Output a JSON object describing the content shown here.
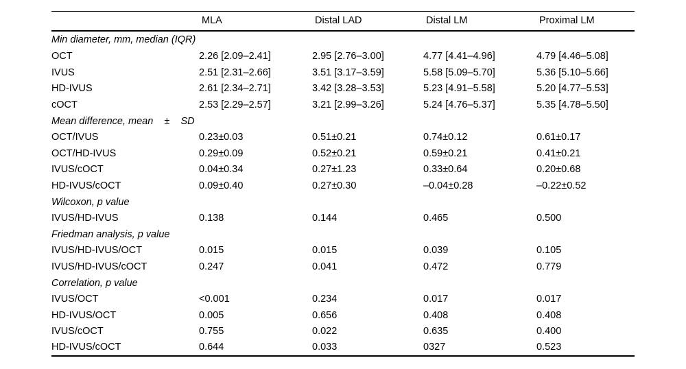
{
  "table": {
    "columns": [
      "",
      "MLA",
      "Distal LAD",
      "Distal LM",
      "Proximal LM"
    ],
    "sections": [
      {
        "header": "Min diameter, mm, median (IQR)",
        "rows": [
          {
            "label": "OCT",
            "values": [
              "2.26 [2.09–2.41]",
              "2.95 [2.76–3.00]",
              "4.77 [4.41–4.96]",
              "4.79 [4.46–5.08]"
            ]
          },
          {
            "label": "IVUS",
            "values": [
              "2.51 [2.31–2.66]",
              "3.51 [3.17–3.59]",
              "5.58 [5.09–5.70]",
              "5.36 [5.10–5.66]"
            ]
          },
          {
            "label": "HD-IVUS",
            "values": [
              "2.61 [2.34–2.71]",
              "3.42 [3.28–3.53]",
              "5.23 [4.91–5.58]",
              "5.20 [4.77–5.53]"
            ]
          },
          {
            "label": "cOCT",
            "values": [
              "2.53 [2.29–2.57]",
              "3.21 [2.99–3.26]",
              "5.24 [4.76–5.37]",
              "5.35 [4.78–5.50]"
            ]
          }
        ]
      },
      {
        "header": "Mean difference, mean    ±    SD",
        "rows": [
          {
            "label": "OCT/IVUS",
            "values": [
              "0.23±0.03",
              "0.51±0.21",
              "0.74±0.12",
              "0.61±0.17"
            ]
          },
          {
            "label": "OCT/HD-IVUS",
            "values": [
              "0.29±0.09",
              "0.52±0.21",
              "0.59±0.21",
              "0.41±0.21"
            ]
          },
          {
            "label": "IVUS/cOCT",
            "values": [
              "0.04±0.34",
              "0.27±1.23",
              "0.33±0.64",
              "0.20±0.68"
            ]
          },
          {
            "label": "HD-IVUS/cOCT",
            "values": [
              "0.09±0.40",
              "0.27±0.30",
              "–0.04±0.28",
              "–0.22±0.52"
            ]
          }
        ]
      },
      {
        "header": "Wilcoxon, p value",
        "rows": [
          {
            "label": "IVUS/HD-IVUS",
            "values": [
              "0.138",
              "0.144",
              "0.465",
              "0.500"
            ]
          }
        ]
      },
      {
        "header": "Friedman analysis, p value",
        "rows": [
          {
            "label": "IVUS/HD-IVUS/OCT",
            "values": [
              "0.015",
              "0.015",
              "0.039",
              "0.105"
            ]
          },
          {
            "label": "IVUS/HD-IVUS/cOCT",
            "values": [
              "0.247",
              "0.041",
              "0.472",
              "0.779"
            ]
          }
        ]
      },
      {
        "header": "Correlation, p value",
        "rows": [
          {
            "label": "IVUS/OCT",
            "values": [
              "<0.001",
              "0.234",
              "0.017",
              "0.017"
            ]
          },
          {
            "label": "HD-IVUS/OCT",
            "values": [
              "0.005",
              "0.656",
              "0.408",
              "0.408"
            ]
          },
          {
            "label": "IVUS/cOCT",
            "values": [
              "0.755",
              "0.022",
              "0.635",
              "0.400"
            ]
          },
          {
            "label": "HD-IVUS/cOCT",
            "values": [
              "0.644",
              "0.033",
              "0327",
              "0.523"
            ]
          }
        ]
      }
    ]
  }
}
